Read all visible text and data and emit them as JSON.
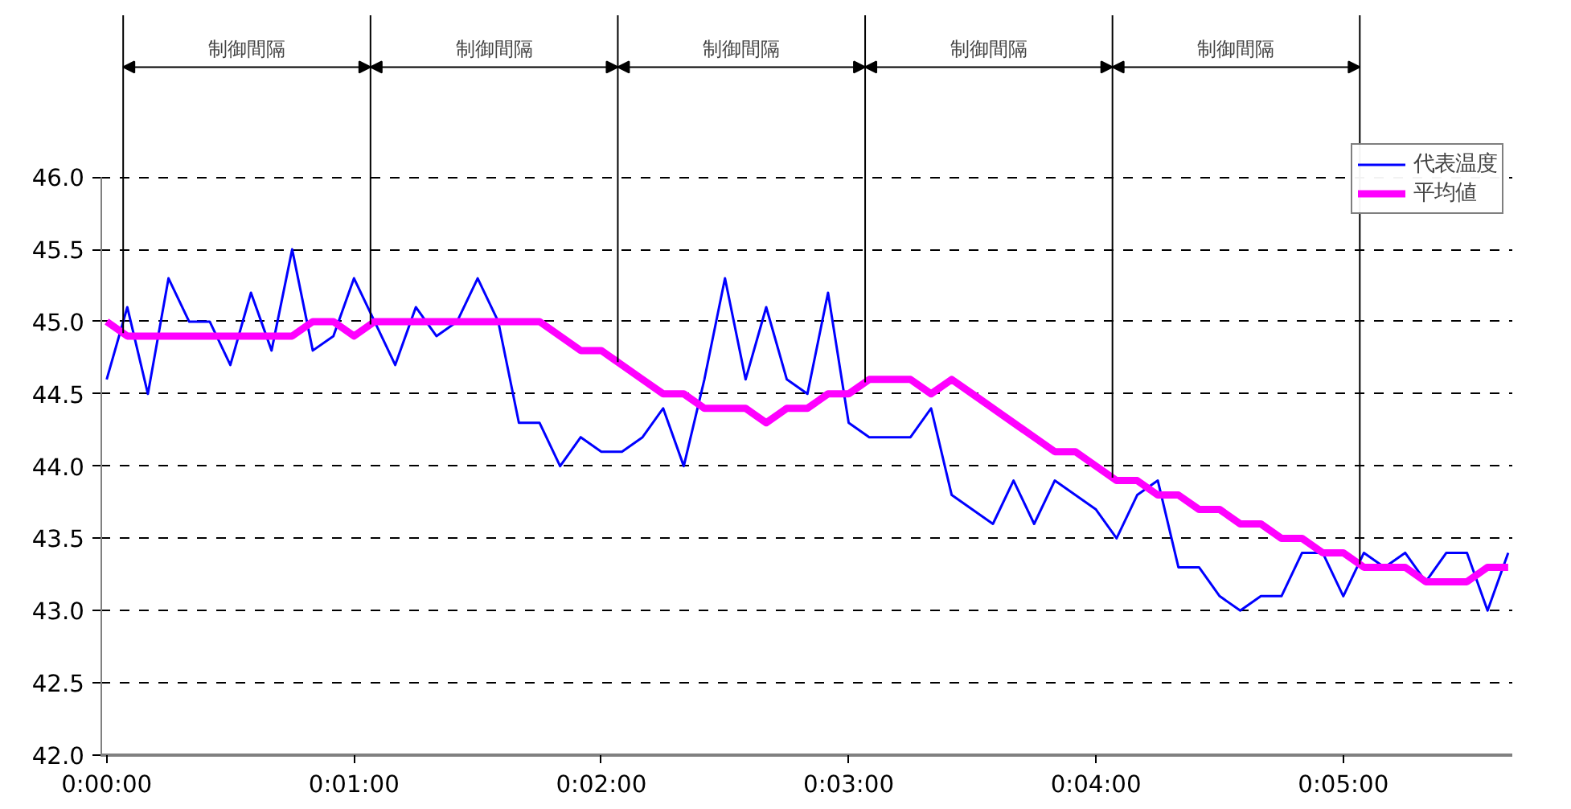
{
  "chart_data": {
    "type": "line",
    "x": [
      0,
      5,
      10,
      15,
      20,
      25,
      30,
      35,
      40,
      45,
      50,
      55,
      60,
      65,
      70,
      75,
      80,
      85,
      90,
      95,
      100,
      105,
      110,
      115,
      120,
      125,
      130,
      135,
      140,
      145,
      150,
      155,
      160,
      165,
      170,
      175,
      180,
      185,
      190,
      195,
      200,
      205,
      210,
      215,
      220,
      225,
      230,
      235,
      240,
      245,
      250,
      255,
      260,
      265,
      270,
      275,
      280,
      285,
      290,
      295,
      300,
      305,
      310,
      315,
      320,
      325,
      330,
      335,
      340
    ],
    "series": [
      {
        "name": "代表温度",
        "color": "#0000ff",
        "values": [
          44.6,
          45.1,
          44.5,
          45.3,
          45.0,
          45.0,
          44.7,
          45.2,
          44.8,
          45.5,
          44.8,
          44.9,
          45.3,
          45.0,
          44.7,
          45.1,
          44.9,
          45.0,
          45.3,
          45.0,
          44.3,
          44.3,
          44.0,
          44.2,
          44.1,
          44.1,
          44.2,
          44.4,
          44.0,
          44.6,
          45.3,
          44.6,
          45.1,
          44.6,
          44.5,
          45.2,
          44.3,
          44.2,
          44.2,
          44.2,
          44.4,
          43.8,
          43.7,
          43.6,
          43.9,
          43.6,
          43.9,
          43.8,
          43.7,
          43.5,
          43.8,
          43.9,
          43.3,
          43.3,
          43.1,
          43.0,
          43.1,
          43.1,
          43.4,
          43.4,
          43.1,
          43.4,
          43.3,
          43.4,
          43.2,
          43.4,
          43.4,
          43.0,
          43.4
        ]
      },
      {
        "name": "平均値",
        "color": "#ff00ff",
        "values": [
          45.0,
          44.9,
          44.9,
          44.9,
          44.9,
          44.9,
          44.9,
          44.9,
          44.9,
          44.9,
          45.0,
          45.0,
          44.9,
          45.0,
          45.0,
          45.0,
          45.0,
          45.0,
          45.0,
          45.0,
          45.0,
          45.0,
          44.9,
          44.8,
          44.8,
          44.7,
          44.6,
          44.5,
          44.5,
          44.4,
          44.4,
          44.4,
          44.3,
          44.4,
          44.4,
          44.5,
          44.5,
          44.6,
          44.6,
          44.6,
          44.5,
          44.6,
          44.5,
          44.4,
          44.3,
          44.2,
          44.1,
          44.1,
          44.0,
          43.9,
          43.9,
          43.8,
          43.8,
          43.7,
          43.7,
          43.6,
          43.6,
          43.5,
          43.5,
          43.4,
          43.4,
          43.3,
          43.3,
          43.3,
          43.2,
          43.2,
          43.2,
          43.3,
          43.3
        ]
      }
    ],
    "xlim": [
      -1.5,
      341
    ],
    "xticks": [
      {
        "value": 0,
        "label": "0:00:00"
      },
      {
        "value": 60,
        "label": "0:01:00"
      },
      {
        "value": 120,
        "label": "0:02:00"
      },
      {
        "value": 180,
        "label": "0:03:00"
      },
      {
        "value": 240,
        "label": "0:04:00"
      },
      {
        "value": 300,
        "label": "0:05:00"
      }
    ],
    "ylim": [
      42,
      46
    ],
    "yticks": [
      {
        "value": 42,
        "label": "42.0"
      },
      {
        "value": 42.5,
        "label": "42.5"
      },
      {
        "value": 43,
        "label": "43.0"
      },
      {
        "value": 43.5,
        "label": "43.5"
      },
      {
        "value": 44,
        "label": "44.0"
      },
      {
        "value": 44.5,
        "label": "44.5"
      },
      {
        "value": 45,
        "label": "45.0"
      },
      {
        "value": 45.5,
        "label": "45.5"
      },
      {
        "value": 46,
        "label": "46.0"
      }
    ],
    "ref_lines": [
      {
        "axis": "x",
        "value": 4
      },
      {
        "axis": "x",
        "value": 64
      },
      {
        "axis": "x",
        "value": 124
      },
      {
        "axis": "x",
        "value": 184
      },
      {
        "axis": "x",
        "value": 244
      },
      {
        "axis": "x",
        "value": 304
      }
    ],
    "annotations": [
      "制御間隔",
      "制御間隔",
      "制御間隔",
      "制御間隔",
      "制御間隔"
    ],
    "grid": "y",
    "legend": "top right",
    "line_style": "solid"
  }
}
